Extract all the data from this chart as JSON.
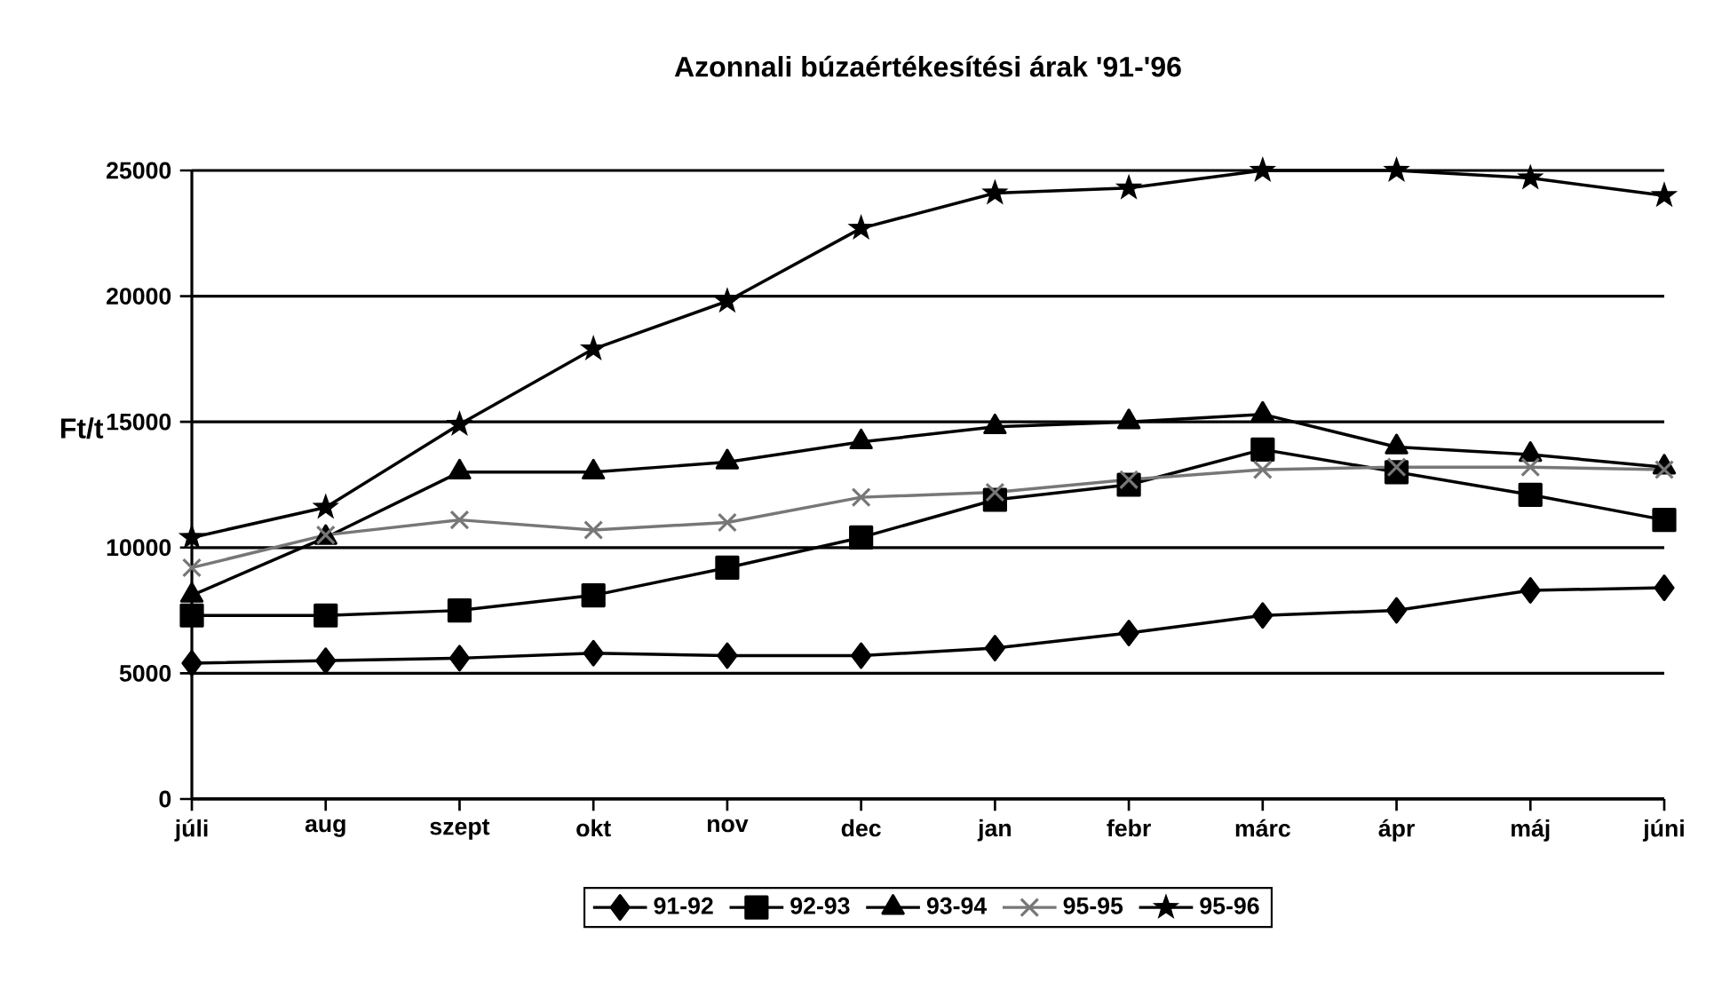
{
  "chart_data": {
    "type": "line",
    "title": "Azonnali búzaértékesítési árak '91-'96",
    "ylabel": "Ft/t",
    "categories": [
      "júli",
      "aug",
      "szept",
      "okt",
      "nov",
      "dec",
      "jan",
      "febr",
      "márc",
      "ápr",
      "máj",
      "júni"
    ],
    "series": [
      {
        "name": "91-92",
        "color": "#000000",
        "marker": "diamond",
        "values": [
          5400,
          5500,
          5600,
          5800,
          5700,
          5700,
          6000,
          6600,
          7300,
          7500,
          8300,
          8400
        ]
      },
      {
        "name": "92-93",
        "color": "#000000",
        "marker": "square",
        "values": [
          7300,
          7300,
          7500,
          8100,
          9200,
          10400,
          11900,
          12500,
          13900,
          13000,
          12100,
          11100
        ]
      },
      {
        "name": "93-94",
        "color": "#000000",
        "marker": "triangle",
        "values": [
          8100,
          10400,
          13000,
          13000,
          13400,
          14200,
          14800,
          15000,
          15300,
          14000,
          13700,
          13200
        ]
      },
      {
        "name": "95-95",
        "color": "#777777",
        "marker": "cross",
        "values": [
          9200,
          10500,
          11100,
          10700,
          11000,
          12000,
          12200,
          12700,
          13100,
          13200,
          13200,
          13100
        ]
      },
      {
        "name": "95-96",
        "color": "#000000",
        "marker": "star",
        "values": [
          10400,
          11600,
          14900,
          17900,
          19800,
          22700,
          24100,
          24300,
          25000,
          25000,
          24700,
          24000
        ]
      }
    ],
    "ylim": [
      0,
      25000
    ],
    "yticks": [
      0,
      5000,
      10000,
      15000,
      20000,
      25000
    ],
    "grid": "y",
    "legend": "bottom"
  }
}
